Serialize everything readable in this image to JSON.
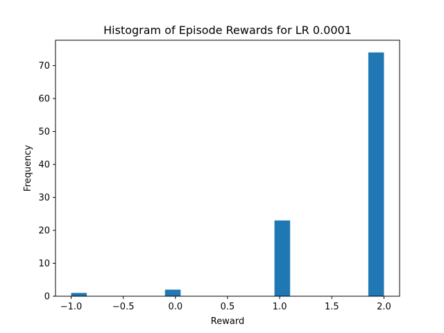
{
  "chart_data": {
    "type": "bar",
    "subtype": "histogram",
    "title": "Histogram of Episode Rewards for LR 0.0001",
    "xlabel": "Reward",
    "ylabel": "Frequency",
    "bin_edges": [
      -1.0,
      -0.85,
      -0.7,
      -0.55,
      -0.4,
      -0.25,
      -0.1,
      0.05,
      0.2,
      0.35,
      0.5,
      0.65,
      0.8,
      0.95,
      1.1,
      1.25,
      1.4,
      1.55,
      1.7,
      1.85,
      2.0
    ],
    "counts": [
      1,
      0,
      0,
      0,
      0,
      0,
      2,
      0,
      0,
      0,
      0,
      0,
      0,
      23,
      0,
      0,
      0,
      0,
      0,
      74
    ],
    "xlim": [
      -1.15,
      2.15
    ],
    "ylim": [
      0,
      77.7
    ],
    "xticks": [
      -1.0,
      -0.5,
      0.0,
      0.5,
      1.0,
      1.5,
      2.0
    ],
    "xtick_labels": [
      "−1.0",
      "−0.5",
      "0.0",
      "0.5",
      "1.0",
      "1.5",
      "2.0"
    ],
    "yticks": [
      0,
      10,
      20,
      30,
      40,
      50,
      60,
      70
    ],
    "ytick_labels": [
      "0",
      "10",
      "20",
      "30",
      "40",
      "50",
      "60",
      "70"
    ],
    "bar_color": "#1f77b4",
    "grid": false,
    "legend": false
  }
}
